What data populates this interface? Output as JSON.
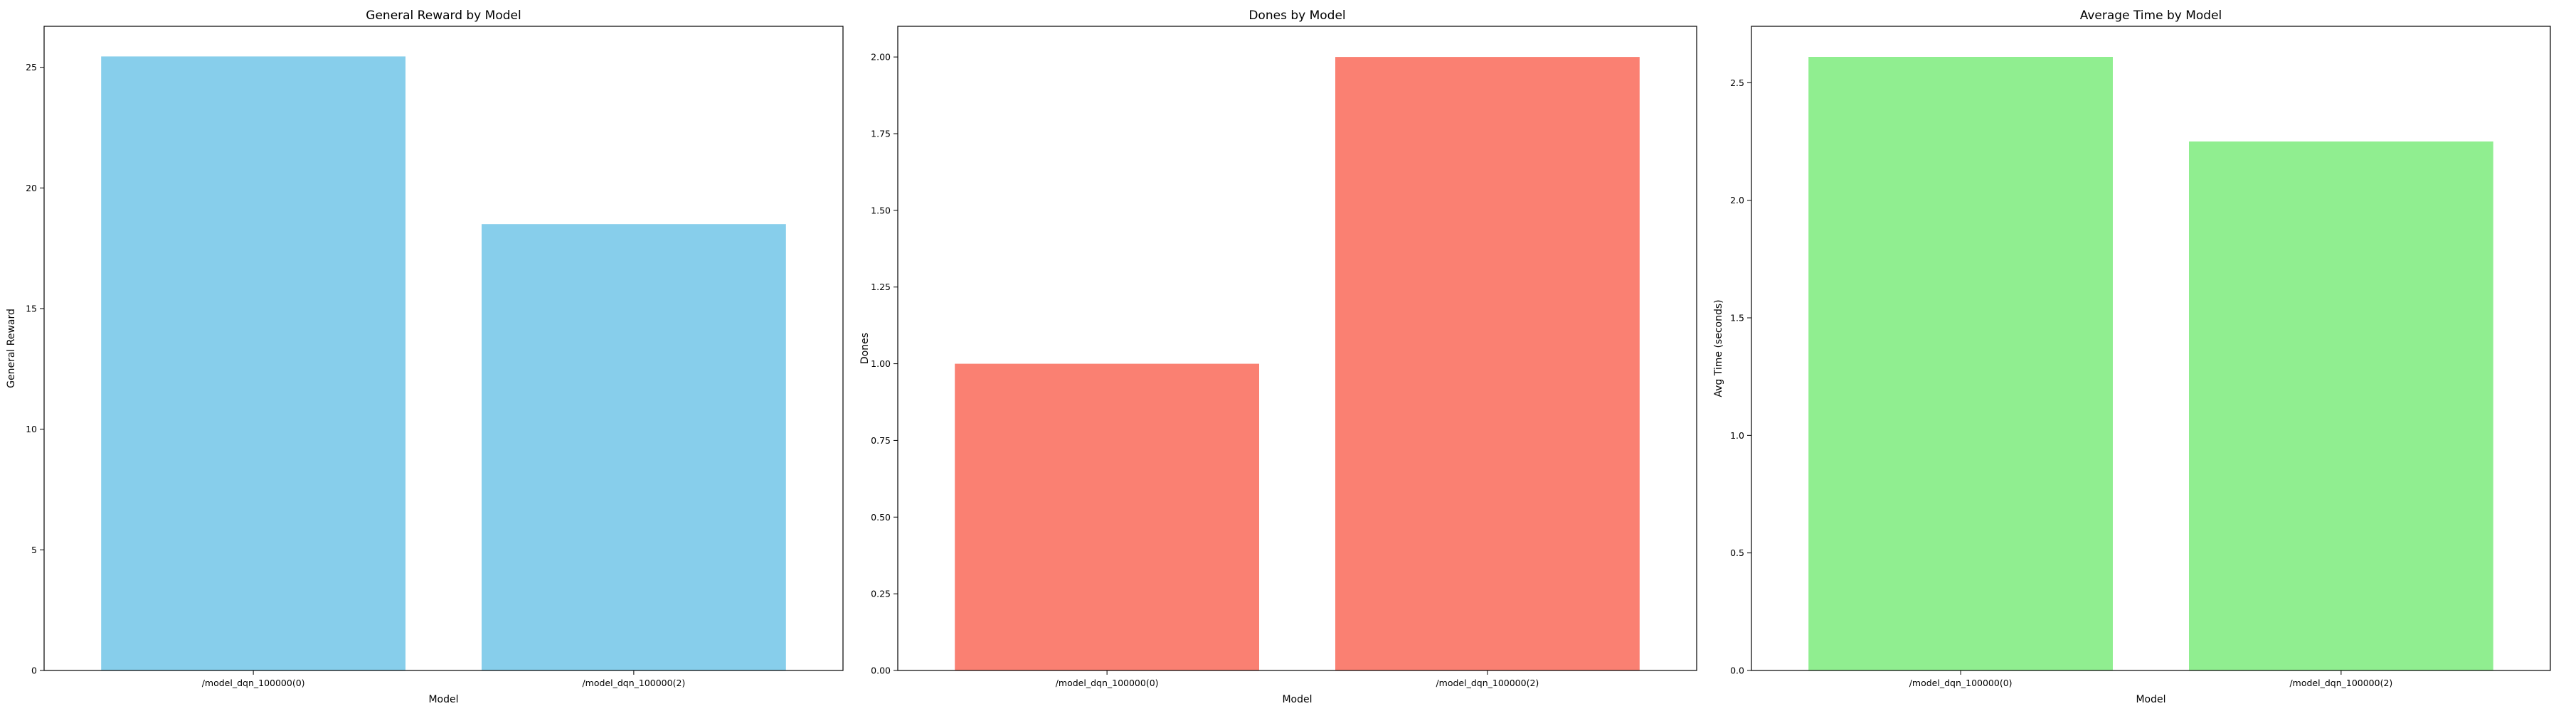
{
  "chart_data": [
    {
      "type": "bar",
      "title": "General Reward by Model",
      "xlabel": "Model",
      "ylabel": "General Reward",
      "categories": [
        "/model_dqn_100000(0)",
        "/model_dqn_100000(2)"
      ],
      "values": [
        25.45,
        18.5
      ],
      "ylim": [
        0,
        26.7
      ],
      "yticks": [
        0,
        5,
        10,
        15,
        20,
        25
      ],
      "ytick_labels": [
        "0",
        "5",
        "10",
        "15",
        "20",
        "25"
      ],
      "color": "#87ceeb",
      "grid": false
    },
    {
      "type": "bar",
      "title": "Dones by Model",
      "xlabel": "Model",
      "ylabel": "Dones",
      "categories": [
        "/model_dqn_100000(0)",
        "/model_dqn_100000(2)"
      ],
      "values": [
        1.0,
        2.0
      ],
      "ylim": [
        0,
        2.1
      ],
      "yticks": [
        0,
        0.25,
        0.5,
        0.75,
        1.0,
        1.25,
        1.5,
        1.75,
        2.0
      ],
      "ytick_labels": [
        "0.00",
        "0.25",
        "0.50",
        "0.75",
        "1.00",
        "1.25",
        "1.50",
        "1.75",
        "2.00"
      ],
      "color": "#fa8072",
      "grid": false
    },
    {
      "type": "bar",
      "title": "Average Time by Model",
      "xlabel": "Model",
      "ylabel": "Avg Time (seconds)",
      "categories": [
        "/model_dqn_100000(0)",
        "/model_dqn_100000(2)"
      ],
      "values": [
        2.61,
        2.25
      ],
      "ylim": [
        0,
        2.74
      ],
      "yticks": [
        0,
        0.5,
        1.0,
        1.5,
        2.0,
        2.5
      ],
      "ytick_labels": [
        "0.0",
        "0.5",
        "1.0",
        "1.5",
        "2.0",
        "2.5"
      ],
      "color": "#90ee90",
      "grid": false
    }
  ]
}
